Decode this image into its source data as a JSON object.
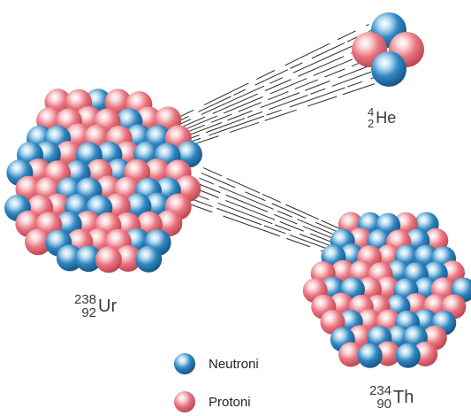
{
  "colors": {
    "neutron": "#2f86c0",
    "proton": "#e8737e",
    "trail": "#2a2a2a",
    "text": "#3a3a3a"
  },
  "nuclei": {
    "uranium": {
      "mass": "238",
      "atomic": "92",
      "symbol": "Ur"
    },
    "helium": {
      "mass": "4",
      "atomic": "2",
      "symbol": "He"
    },
    "thorium": {
      "mass": "234",
      "atomic": "90",
      "symbol": "Th"
    }
  },
  "legend": {
    "neutron_label": "Neutroni",
    "proton_label": "Protoni",
    "neutron_icon": "neutron-sphere",
    "proton_icon": "proton-sphere"
  }
}
